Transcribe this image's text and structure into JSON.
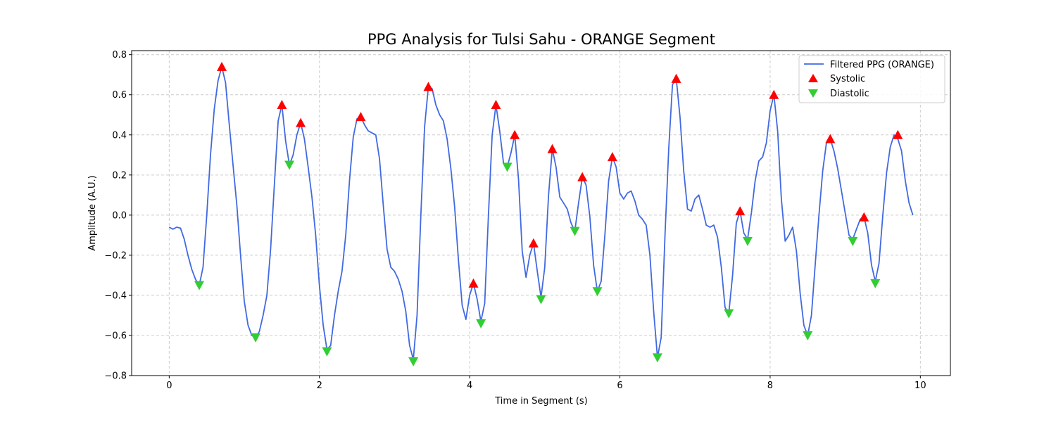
{
  "chart_data": {
    "type": "line",
    "title": "PPG Analysis for Tulsi Sahu - ORANGE Segment",
    "xlabel": "Time in Segment (s)",
    "ylabel": "Amplitude (A.U.)",
    "xlim": [
      -0.5,
      10.4
    ],
    "ylim": [
      -0.8,
      0.82
    ],
    "x_ticks": [
      0,
      2,
      4,
      6,
      8,
      10
    ],
    "x_tick_labels": [
      "0",
      "2",
      "4",
      "6",
      "8",
      "10"
    ],
    "y_ticks": [
      -0.8,
      -0.6,
      -0.4,
      -0.2,
      0.0,
      0.2,
      0.4,
      0.6,
      0.8
    ],
    "y_tick_labels": [
      "−0.8",
      "−0.6",
      "−0.4",
      "−0.2",
      "0.0",
      "0.2",
      "0.4",
      "0.6",
      "0.8"
    ],
    "grid": true,
    "legend_position": "top-right",
    "colors": {
      "line": "#4169e1",
      "systolic": "#ff0000",
      "diastolic": "#32cd32"
    },
    "series": [
      {
        "name": "Filtered PPG (ORANGE)",
        "kind": "line",
        "x": [
          0,
          0.05,
          0.1,
          0.15,
          0.2,
          0.25,
          0.3,
          0.35,
          0.4,
          0.45,
          0.5,
          0.55,
          0.6,
          0.65,
          0.7,
          0.75,
          0.8,
          0.85,
          0.9,
          0.95,
          1.0,
          1.05,
          1.1,
          1.15,
          1.2,
          1.25,
          1.3,
          1.35,
          1.4,
          1.45,
          1.5,
          1.55,
          1.6,
          1.65,
          1.7,
          1.75,
          1.8,
          1.85,
          1.9,
          1.95,
          2.0,
          2.05,
          2.1,
          2.15,
          2.2,
          2.25,
          2.3,
          2.35,
          2.4,
          2.45,
          2.5,
          2.55,
          2.6,
          2.65,
          2.7,
          2.75,
          2.8,
          2.85,
          2.9,
          2.95,
          3.0,
          3.05,
          3.1,
          3.15,
          3.2,
          3.25,
          3.3,
          3.35,
          3.4,
          3.45,
          3.5,
          3.55,
          3.6,
          3.65,
          3.7,
          3.75,
          3.8,
          3.85,
          3.9,
          3.95,
          4.0,
          4.05,
          4.1,
          4.15,
          4.2,
          4.25,
          4.3,
          4.35,
          4.4,
          4.45,
          4.5,
          4.55,
          4.6,
          4.65,
          4.7,
          4.75,
          4.8,
          4.85,
          4.9,
          4.95,
          5.0,
          5.05,
          5.1,
          5.15,
          5.2,
          5.25,
          5.3,
          5.35,
          5.4,
          5.45,
          5.5,
          5.55,
          5.6,
          5.65,
          5.7,
          5.75,
          5.8,
          5.85,
          5.9,
          5.95,
          6.0,
          6.05,
          6.1,
          6.15,
          6.2,
          6.25,
          6.3,
          6.35,
          6.4,
          6.45,
          6.5,
          6.55,
          6.6,
          6.65,
          6.7,
          6.75,
          6.8,
          6.85,
          6.9,
          6.95,
          7.0,
          7.05,
          7.1,
          7.15,
          7.2,
          7.25,
          7.3,
          7.35,
          7.4,
          7.45,
          7.5,
          7.55,
          7.6,
          7.65,
          7.7,
          7.75,
          7.8,
          7.85,
          7.9,
          7.95,
          8.0,
          8.05,
          8.1,
          8.15,
          8.2,
          8.25,
          8.3,
          8.35,
          8.4,
          8.45,
          8.5,
          8.55,
          8.6,
          8.65,
          8.7,
          8.75,
          8.8,
          8.85,
          8.9,
          8.95,
          9.0,
          9.05,
          9.1,
          9.15,
          9.2,
          9.25,
          9.3,
          9.35,
          9.4,
          9.45,
          9.5,
          9.55,
          9.6,
          9.65,
          9.7,
          9.75,
          9.8,
          9.85,
          9.9
        ],
        "y": [
          -0.06,
          -0.07,
          -0.06,
          -0.065,
          -0.12,
          -0.2,
          -0.27,
          -0.32,
          -0.35,
          -0.26,
          0.0,
          0.3,
          0.53,
          0.67,
          0.74,
          0.66,
          0.45,
          0.25,
          0.05,
          -0.2,
          -0.43,
          -0.55,
          -0.6,
          -0.61,
          -0.58,
          -0.5,
          -0.4,
          -0.17,
          0.15,
          0.47,
          0.55,
          0.37,
          0.25,
          0.3,
          0.4,
          0.46,
          0.38,
          0.24,
          0.09,
          -0.1,
          -0.35,
          -0.55,
          -0.67,
          -0.65,
          -0.5,
          -0.38,
          -0.28,
          -0.1,
          0.17,
          0.39,
          0.48,
          0.49,
          0.45,
          0.42,
          0.41,
          0.4,
          0.28,
          0.05,
          -0.17,
          -0.26,
          -0.28,
          -0.32,
          -0.38,
          -0.48,
          -0.65,
          -0.72,
          -0.5,
          0.0,
          0.44,
          0.64,
          0.63,
          0.55,
          0.5,
          0.47,
          0.38,
          0.23,
          0.04,
          -0.22,
          -0.45,
          -0.52,
          -0.4,
          -0.34,
          -0.42,
          -0.53,
          -0.44,
          0.0,
          0.4,
          0.55,
          0.42,
          0.26,
          0.24,
          0.31,
          0.4,
          0.18,
          -0.18,
          -0.31,
          -0.2,
          -0.14,
          -0.28,
          -0.41,
          -0.26,
          0.1,
          0.33,
          0.24,
          0.09,
          0.06,
          0.03,
          -0.04,
          -0.08,
          0.06,
          0.19,
          0.15,
          -0.01,
          -0.25,
          -0.38,
          -0.33,
          -0.1,
          0.17,
          0.29,
          0.24,
          0.11,
          0.08,
          0.11,
          0.12,
          0.07,
          0.0,
          -0.02,
          -0.05,
          -0.2,
          -0.48,
          -0.71,
          -0.61,
          -0.1,
          0.33,
          0.65,
          0.68,
          0.49,
          0.22,
          0.03,
          0.02,
          0.08,
          0.1,
          0.03,
          -0.05,
          -0.06,
          -0.05,
          -0.11,
          -0.26,
          -0.46,
          -0.49,
          -0.3,
          -0.04,
          0.02,
          -0.09,
          -0.12,
          0.01,
          0.17,
          0.27,
          0.29,
          0.36,
          0.52,
          0.6,
          0.42,
          0.08,
          -0.13,
          -0.1,
          -0.06,
          -0.18,
          -0.39,
          -0.55,
          -0.6,
          -0.5,
          -0.25,
          0.0,
          0.22,
          0.36,
          0.38,
          0.32,
          0.23,
          0.12,
          0.01,
          -0.1,
          -0.12,
          -0.07,
          -0.02,
          -0.01,
          -0.09,
          -0.25,
          -0.33,
          -0.24,
          0.0,
          0.21,
          0.34,
          0.4,
          0.38,
          0.32,
          0.17,
          0.06,
          0.0
        ]
      },
      {
        "name": "Systolic",
        "kind": "marker-up",
        "x": [
          0.7,
          1.5,
          1.75,
          2.55,
          3.45,
          4.05,
          4.35,
          4.6,
          4.85,
          5.1,
          5.5,
          5.9,
          6.75,
          7.6,
          8.05,
          8.8,
          9.25,
          9.7
        ],
        "y": [
          0.74,
          0.55,
          0.46,
          0.49,
          0.64,
          -0.34,
          0.55,
          0.4,
          -0.14,
          0.33,
          0.19,
          0.29,
          0.68,
          0.02,
          0.6,
          0.38,
          -0.01,
          0.4
        ]
      },
      {
        "name": "Diastolic",
        "kind": "marker-down",
        "x": [
          0.4,
          1.15,
          1.6,
          2.1,
          3.25,
          4.15,
          4.5,
          4.95,
          5.4,
          5.7,
          6.5,
          7.45,
          7.7,
          8.5,
          9.1,
          9.4
        ],
        "y": [
          -0.35,
          -0.61,
          0.25,
          -0.68,
          -0.73,
          -0.54,
          0.24,
          -0.42,
          -0.08,
          -0.38,
          -0.71,
          -0.49,
          -0.13,
          -0.6,
          -0.13,
          -0.34
        ]
      }
    ]
  }
}
